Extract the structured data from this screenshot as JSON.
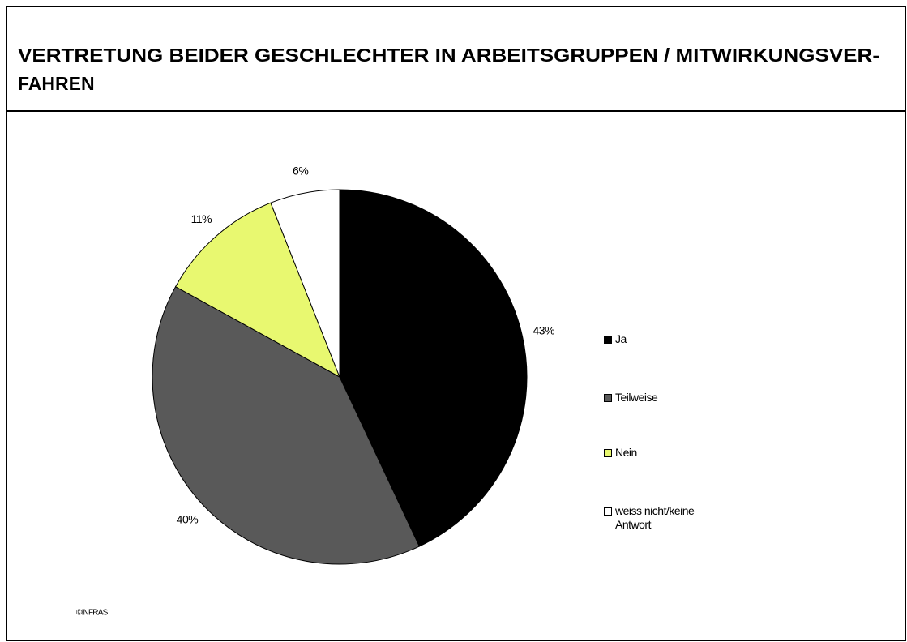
{
  "chart_data": {
    "type": "pie",
    "title": "VERTRETUNG BEIDER GESCHLECHTER IN ARBEITSGRUPPEN / MITWIRKUNGSVER-FAHREN",
    "categories": [
      "Ja",
      "Teilweise",
      "Nein",
      "weiss nicht/keine Antwort"
    ],
    "values": [
      43,
      40,
      11,
      6
    ],
    "value_labels": [
      "43%",
      "40%",
      "11%",
      "6%"
    ],
    "colors": [
      "#000000",
      "#595959",
      "#e8f870",
      "#ffffff"
    ],
    "legend": "right",
    "source": "©INFRAS"
  }
}
